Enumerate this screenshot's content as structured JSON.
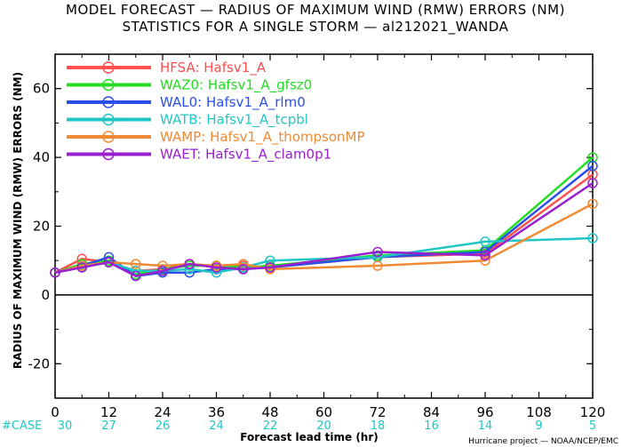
{
  "chart_data": {
    "type": "line",
    "title_line1": "MODEL FORECAST — RADIUS OF MAXIMUM WIND (RMW) ERRORS (NM)",
    "title_line2": "STATISTICS FOR A SINGLE STORM — al212021_WANDA",
    "ylabel": "RADIUS OF MAXIMUM WIND (RMW) ERRORS (NM)",
    "xlabel": "Forecast lead time (hr)",
    "xlim": [
      0,
      120
    ],
    "ylim": [
      -30,
      70
    ],
    "x_ticks": [
      "0",
      "12",
      "24",
      "36",
      "48",
      "60",
      "72",
      "84",
      "96",
      "108",
      "120"
    ],
    "y_ticks": [
      "-20",
      "0",
      "20",
      "40",
      "60"
    ],
    "case_label": "#CASE",
    "case_counts": [
      "30",
      "27",
      "26",
      "24",
      "22",
      "20",
      "18",
      "16",
      "14",
      "9",
      "5"
    ],
    "credit": "Hurricane project — NOAA/NCEP/EMC",
    "x": [
      0,
      6,
      12,
      18,
      24,
      30,
      36,
      42,
      48,
      72,
      96,
      120
    ],
    "series": [
      {
        "name": "HFSA",
        "label": "Hafsv1_A",
        "color": "#ff4f4f",
        "values": [
          6.5,
          10.5,
          9.5,
          7.0,
          7.5,
          9.0,
          8.0,
          8.5,
          8.0,
          11.0,
          12.0,
          35.0
        ]
      },
      {
        "name": "WAZ0",
        "label": "Hafsv1_A_gfsz0",
        "color": "#22dd22",
        "values": [
          6.5,
          9.0,
          10.0,
          6.0,
          7.5,
          8.5,
          8.5,
          8.0,
          8.5,
          11.5,
          13.0,
          40.0
        ]
      },
      {
        "name": "WAL0",
        "label": "Hafsv1_A_rlm0",
        "color": "#2a4fe6",
        "values": [
          6.5,
          8.5,
          11.0,
          5.5,
          6.5,
          6.5,
          7.5,
          7.5,
          8.0,
          11.0,
          12.5,
          37.5
        ]
      },
      {
        "name": "WATB",
        "label": "Hafsv1_A_tcpbl",
        "color": "#20c6c6",
        "values": [
          6.5,
          8.0,
          9.5,
          7.0,
          7.0,
          7.5,
          6.5,
          8.0,
          10.0,
          11.0,
          15.5,
          16.5
        ]
      },
      {
        "name": "WAMP",
        "label": "Hafsv1_A_thompsonMP",
        "color": "#f08a35",
        "values": [
          6.5,
          8.5,
          9.5,
          9.0,
          8.5,
          9.0,
          8.5,
          9.0,
          7.5,
          8.5,
          10.0,
          26.5
        ]
      },
      {
        "name": "WAET",
        "label": "Hafsv1_A_clam0p1",
        "color": "#9a1fd0",
        "values": [
          6.5,
          8.0,
          9.5,
          5.5,
          7.0,
          9.0,
          8.0,
          7.5,
          8.0,
          12.5,
          11.5,
          32.5
        ]
      }
    ]
  }
}
